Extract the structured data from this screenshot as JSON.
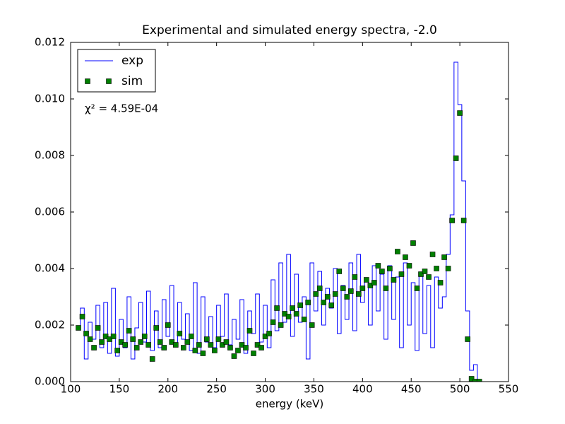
{
  "chart_data": {
    "type": "line",
    "title": "Experimental and simulated energy spectra, -2.0",
    "xlabel": "energy (keV)",
    "annotation": "χ² = 4.59E-04",
    "legend": "upper left",
    "x": [
      108,
      112,
      116,
      120,
      124,
      128,
      132,
      136,
      140,
      144,
      148,
      152,
      156,
      160,
      164,
      168,
      172,
      176,
      180,
      184,
      188,
      192,
      196,
      200,
      204,
      208,
      212,
      216,
      220,
      224,
      228,
      232,
      236,
      240,
      244,
      248,
      252,
      256,
      260,
      264,
      268,
      272,
      276,
      280,
      284,
      288,
      292,
      296,
      300,
      304,
      308,
      312,
      316,
      320,
      324,
      328,
      332,
      336,
      340,
      344,
      348,
      352,
      356,
      360,
      364,
      368,
      372,
      376,
      380,
      384,
      388,
      392,
      396,
      400,
      404,
      408,
      412,
      416,
      420,
      424,
      428,
      432,
      436,
      440,
      444,
      448,
      452,
      456,
      460,
      464,
      468,
      472,
      476,
      480,
      484,
      488,
      492,
      496,
      500,
      504,
      508,
      512,
      516,
      520
    ],
    "series": [
      {
        "name": "exp",
        "style": "step",
        "color": "#0000ff",
        "values": [
          0.0019,
          0.0026,
          0.0008,
          0.0021,
          0.0015,
          0.0027,
          0.0012,
          0.0028,
          0.001,
          0.0033,
          0.0009,
          0.0022,
          0.0012,
          0.003,
          0.0008,
          0.0019,
          0.0028,
          0.0014,
          0.0032,
          0.0011,
          0.0025,
          0.0012,
          0.0029,
          0.0016,
          0.0034,
          0.0013,
          0.0028,
          0.0015,
          0.0024,
          0.0011,
          0.0035,
          0.001,
          0.003,
          0.0014,
          0.0023,
          0.0012,
          0.0027,
          0.0016,
          0.0031,
          0.0013,
          0.0022,
          0.0015,
          0.0029,
          0.001,
          0.0025,
          0.0017,
          0.0031,
          0.0014,
          0.0027,
          0.0012,
          0.0036,
          0.0018,
          0.0042,
          0.0021,
          0.0045,
          0.0016,
          0.0038,
          0.0021,
          0.003,
          0.0008,
          0.0042,
          0.0025,
          0.0039,
          0.002,
          0.0033,
          0.0026,
          0.004,
          0.0017,
          0.0034,
          0.0022,
          0.0042,
          0.0018,
          0.0045,
          0.0028,
          0.0036,
          0.002,
          0.0041,
          0.0025,
          0.0038,
          0.0015,
          0.0041,
          0.0022,
          0.0037,
          0.0012,
          0.0042,
          0.002,
          0.0035,
          0.0011,
          0.0038,
          0.0017,
          0.0034,
          0.0012,
          0.0037,
          0.0026,
          0.003,
          0.0045,
          0.0059,
          0.0113,
          0.0098,
          0.0071,
          0.0025,
          0.0004,
          0.0006,
          0.0
        ]
      },
      {
        "name": "sim",
        "style": "marker",
        "color": "#008000",
        "values": [
          0.0019,
          0.0023,
          0.0017,
          0.0015,
          0.0012,
          0.0019,
          0.0014,
          0.0016,
          0.0015,
          0.0016,
          0.0011,
          0.0014,
          0.0013,
          0.0018,
          0.0015,
          0.0012,
          0.0014,
          0.0016,
          0.0013,
          0.0008,
          0.0019,
          0.0014,
          0.0012,
          0.002,
          0.0014,
          0.0013,
          0.0017,
          0.0012,
          0.0014,
          0.0016,
          0.0011,
          0.0013,
          0.001,
          0.0015,
          0.0013,
          0.0011,
          0.0015,
          0.0013,
          0.0014,
          0.0012,
          0.0009,
          0.0011,
          0.0013,
          0.0012,
          0.0018,
          0.001,
          0.0013,
          0.0012,
          0.0016,
          0.0017,
          0.0021,
          0.0026,
          0.002,
          0.0024,
          0.0023,
          0.0026,
          0.0024,
          0.0027,
          0.0022,
          0.0028,
          0.002,
          0.0031,
          0.0033,
          0.0028,
          0.003,
          0.0027,
          0.0031,
          0.0039,
          0.0033,
          0.003,
          0.0032,
          0.0037,
          0.0031,
          0.0033,
          0.0036,
          0.0034,
          0.0035,
          0.0041,
          0.0039,
          0.0033,
          0.004,
          0.0036,
          0.0046,
          0.0038,
          0.0044,
          0.0041,
          0.0049,
          0.0033,
          0.0038,
          0.0039,
          0.0037,
          0.0045,
          0.004,
          0.0035,
          0.0044,
          0.004,
          0.0057,
          0.0079,
          0.0095,
          0.0057,
          0.0015,
          0.0001,
          0.0,
          0.0
        ]
      }
    ],
    "xlim": [
      100,
      550
    ],
    "xticks": [
      100,
      150,
      200,
      250,
      300,
      350,
      400,
      450,
      500,
      550
    ],
    "ylim": [
      0,
      0.012
    ],
    "yticks": [
      {
        "value": 0,
        "label": "0.000"
      },
      {
        "value": 0.002,
        "label": "0.002"
      },
      {
        "value": 0.004,
        "label": "0.004"
      },
      {
        "value": 0.006,
        "label": "0.006"
      },
      {
        "value": 0.008,
        "label": "0.008"
      },
      {
        "value": 0.01,
        "label": "0.010"
      },
      {
        "value": 0.012,
        "label": "0.012"
      }
    ],
    "grid": false
  }
}
